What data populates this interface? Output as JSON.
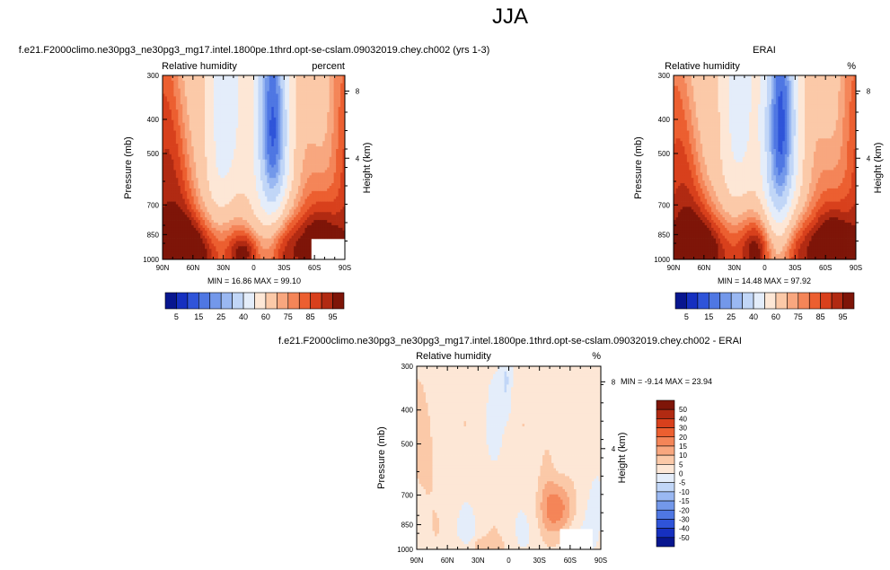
{
  "figure_title": "JJA",
  "chart_data": [
    {
      "type": "heatmap",
      "title": "f.e21.F2000climo.ne30pg3_ne30pg3_mg17.intel.1800pe.1thrd.opt-se-cslam.09032019.chey.ch002 (yrs 1-3)",
      "left_label": "Relative humidity",
      "right_label": "percent",
      "ylabel": "Pressure (mb)",
      "y2label": "Height (km)",
      "x_ticks": [
        "90N",
        "60N",
        "30N",
        "0",
        "30S",
        "60S",
        "90S"
      ],
      "y_ticks": [
        "300",
        "400",
        "500",
        "700",
        "850",
        "1000"
      ],
      "y2_ticks": [
        "8",
        "4"
      ],
      "stats": "MIN = 16.86   MAX = 99.10",
      "colorbar_labels": [
        "5",
        "15",
        "25",
        "40",
        "60",
        "75",
        "85",
        "95"
      ],
      "field_features": [
        {
          "type": "moist",
          "lat": 90,
          "p": 600,
          "sx": 20,
          "sp": 400,
          "amp": 18
        },
        {
          "type": "moist",
          "lat": 60,
          "p": 930,
          "sx": 26,
          "sp": 130,
          "amp": 22
        },
        {
          "type": "moist",
          "lat": -52,
          "p": 900,
          "sx": 26,
          "sp": 140,
          "amp": 24
        },
        {
          "type": "moist",
          "lat": 8,
          "p": 950,
          "sx": 10,
          "sp": 90,
          "amp": 20
        },
        {
          "type": "moist",
          "lat": -90,
          "p": 550,
          "sx": 14,
          "sp": 500,
          "amp": 12
        },
        {
          "type": "dry",
          "lat": -18,
          "p": 480,
          "sx": 11,
          "sp": 250,
          "amp": 48
        },
        {
          "type": "dry",
          "lat": 32,
          "p": 500,
          "sx": 11,
          "sp": 260,
          "amp": 22
        }
      ],
      "missing_region": {
        "lat_from": -57,
        "lat_to": -90,
        "p_from": 875,
        "p_to": 1000
      }
    },
    {
      "type": "heatmap",
      "title": "ERAI",
      "left_label": "Relative humidity",
      "right_label": "%",
      "ylabel": "Pressure (mb)",
      "y2label": "Height (km)",
      "x_ticks": [
        "90N",
        "60N",
        "30N",
        "0",
        "30S",
        "60S",
        "90S"
      ],
      "y_ticks": [
        "300",
        "400",
        "500",
        "700",
        "850",
        "1000"
      ],
      "y2_ticks": [
        "8",
        "4"
      ],
      "stats": "MIN = 14.48   MAX = 97.92",
      "colorbar_labels": [
        "5",
        "15",
        "25",
        "40",
        "60",
        "75",
        "85",
        "95"
      ],
      "field_features": [
        {
          "type": "moist",
          "lat": 88,
          "p": 650,
          "sx": 18,
          "sp": 400,
          "amp": 14
        },
        {
          "type": "moist",
          "lat": 55,
          "p": 920,
          "sx": 26,
          "sp": 150,
          "amp": 22
        },
        {
          "type": "moist",
          "lat": -58,
          "p": 920,
          "sx": 24,
          "sp": 140,
          "amp": 26
        },
        {
          "type": "moist",
          "lat": 6,
          "p": 920,
          "sx": 10,
          "sp": 130,
          "amp": 22
        },
        {
          "type": "moist",
          "lat": -90,
          "p": 550,
          "sx": 16,
          "sp": 500,
          "amp": 12
        },
        {
          "type": "dry",
          "lat": -15,
          "p": 490,
          "sx": 11,
          "sp": 280,
          "amp": 50
        },
        {
          "type": "dry",
          "lat": 30,
          "p": 500,
          "sx": 11,
          "sp": 280,
          "amp": 18
        }
      ],
      "missing_region": null
    },
    {
      "type": "heatmap",
      "title": "f.e21.F2000climo.ne30pg3_ne30pg3_mg17.intel.1800pe.1thrd.opt-se-cslam.09032019.chey.ch002 - ERAI",
      "left_label": "Relative humidity",
      "right_label": "%",
      "ylabel": "Pressure (mb)",
      "y2label": "Height (km)",
      "x_ticks": [
        "90N",
        "60N",
        "30N",
        "0",
        "30S",
        "60S",
        "90S"
      ],
      "y_ticks": [
        "300",
        "400",
        "500",
        "700",
        "850",
        "1000"
      ],
      "y2_ticks": [
        "8",
        "4"
      ],
      "stats": "MIN = -9.14   MAX = 23.94",
      "colorbar_labels": [
        "50",
        "40",
        "30",
        "20",
        "15",
        "10",
        "5",
        "0",
        "-5",
        "-10",
        "-15",
        "-20",
        "-30",
        "-40",
        "-50"
      ],
      "field_features": [
        {
          "type": "pos",
          "lat": -48,
          "p": 760,
          "sx": 12,
          "sp": 90,
          "amp": 14
        },
        {
          "type": "pos",
          "lat": 80,
          "p": 500,
          "sx": 10,
          "sp": 150,
          "amp": 6
        },
        {
          "type": "pos",
          "lat": -38,
          "p": 550,
          "sx": 6,
          "sp": 200,
          "amp": 5
        },
        {
          "type": "pos",
          "lat": 25,
          "p": 980,
          "sx": 14,
          "sp": 40,
          "amp": 6
        },
        {
          "type": "neg",
          "lat": 2,
          "p": 330,
          "sx": 4,
          "sp": 60,
          "amp": 7
        },
        {
          "type": "neg",
          "lat": -85,
          "p": 800,
          "sx": 5,
          "sp": 120,
          "amp": 6
        },
        {
          "type": "neg",
          "lat": 40,
          "p": 900,
          "sx": 4,
          "sp": 80,
          "amp": 4
        }
      ],
      "missing_region": {
        "lat_from": -50,
        "lat_to": -82,
        "p_from": 875,
        "p_to": 1000
      }
    }
  ],
  "colors": {
    "fill_scale": [
      "#08168f",
      "#1630c0",
      "#2f54d9",
      "#4f77e3",
      "#7398ea",
      "#9ab8f2",
      "#c1d6f7",
      "#e4edfa",
      "#fde7d6",
      "#fbc9a8",
      "#f8a77f",
      "#f48558",
      "#ec5f30",
      "#d8401c",
      "#b12a12",
      "#7e1508"
    ],
    "diff_scale": [
      "#08168f",
      "#1630c0",
      "#2f54d9",
      "#4f77e3",
      "#7398ea",
      "#9ab8f2",
      "#c1d6f7",
      "#e4edfa",
      "#fde7d6",
      "#fbc9a8",
      "#f8a77f",
      "#f48558",
      "#ec5f30",
      "#d8401c",
      "#b12a12",
      "#7e1508"
    ]
  }
}
